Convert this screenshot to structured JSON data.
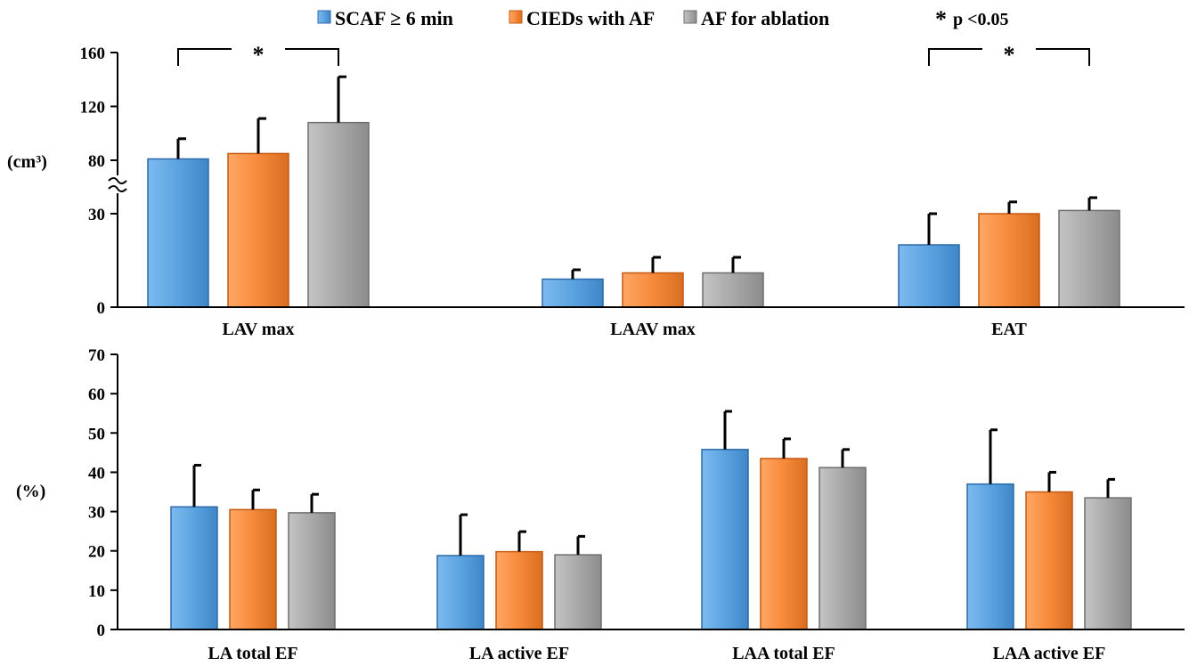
{
  "colors": {
    "series": [
      "#5ba3e0",
      "#f7893a",
      "#a8a8a8"
    ],
    "series_edge": [
      "#2c6aa8",
      "#c45a12",
      "#6e6e6e"
    ]
  },
  "legend": {
    "items": [
      "SCAF ≥ 6 min",
      "CIEDs with AF",
      "AF for ablation"
    ],
    "placement": "top-center"
  },
  "significance_note": {
    "star": "*",
    "text": "p <0.05"
  },
  "chart_data": [
    {
      "type": "bar",
      "panel": "top",
      "ylabel": "(cm³)",
      "broken_axis": true,
      "ylim": [
        0,
        160
      ],
      "yticks": [
        "0",
        "30",
        "80",
        "120",
        "160"
      ],
      "categories": [
        "LAV max",
        "LAAV max",
        "EAT"
      ],
      "series": [
        {
          "name": "SCAF ≥ 6 min",
          "values": [
            81,
            9,
            20
          ],
          "errors": [
            15,
            3,
            10
          ]
        },
        {
          "name": "CIEDs with AF",
          "values": [
            85,
            11,
            30
          ],
          "errors": [
            26,
            5,
            11
          ]
        },
        {
          "name": "AF for ablation",
          "values": [
            108,
            11,
            33
          ],
          "errors": [
            34,
            5,
            12
          ]
        }
      ],
      "annotations": [
        {
          "text": "*",
          "from_category": 0,
          "from_series": 0,
          "to_category": 0,
          "to_series": 2
        },
        {
          "text": "*",
          "from_category": 2,
          "from_series": 0,
          "to_category": 2,
          "to_series": 2
        }
      ]
    },
    {
      "type": "bar",
      "panel": "bottom",
      "ylabel": "(%)",
      "ylim": [
        0,
        70
      ],
      "yticks": [
        "0",
        "10",
        "20",
        "30",
        "40",
        "50",
        "60",
        "70"
      ],
      "categories": [
        "LA total EF",
        "LA active EF",
        "LAA total EF",
        "LAA active EF"
      ],
      "series": [
        {
          "name": "SCAF ≥ 6 min",
          "values": [
            31.2,
            18.8,
            45.8,
            37.0
          ],
          "errors": [
            10.6,
            10.4,
            9.7,
            13.8
          ]
        },
        {
          "name": "CIEDs with AF",
          "values": [
            30.5,
            19.8,
            43.5,
            35.0
          ],
          "errors": [
            5.0,
            5.1,
            5.0,
            5.0
          ]
        },
        {
          "name": "AF for ablation",
          "values": [
            29.7,
            19.0,
            41.2,
            33.5
          ],
          "errors": [
            4.7,
            4.7,
            4.6,
            4.7
          ]
        }
      ]
    }
  ]
}
